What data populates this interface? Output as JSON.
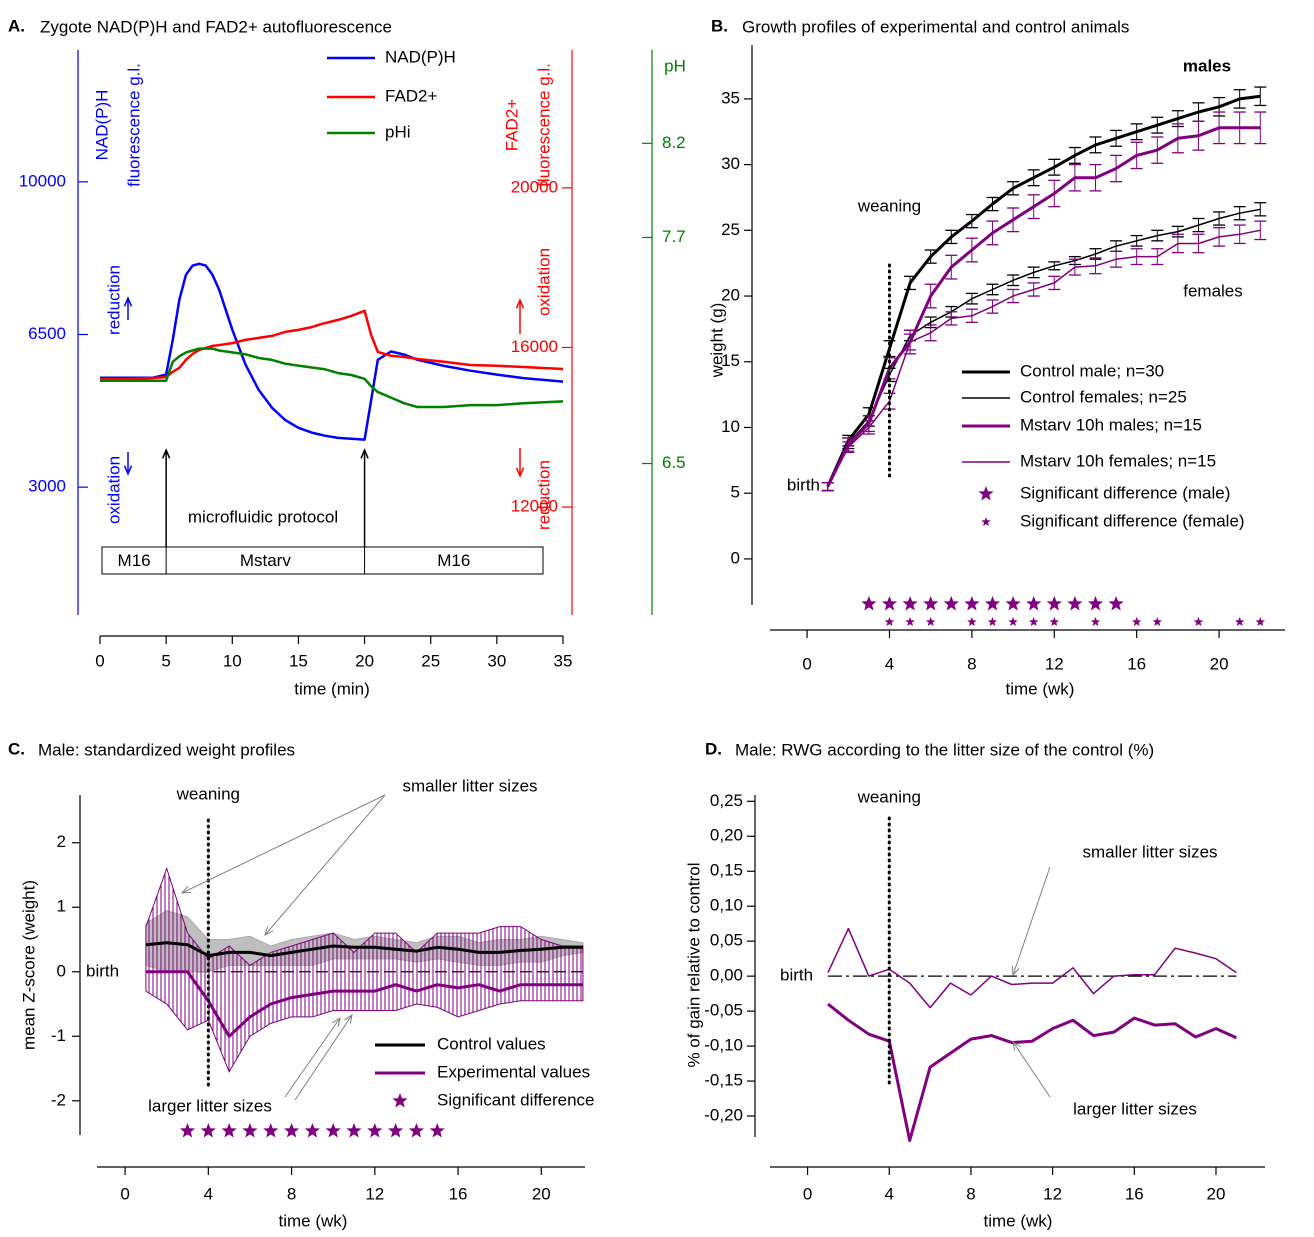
{
  "chart_data": [
    {
      "type": "line",
      "label": "A.",
      "title": "Zygote NAD(P)H and FAD2+ autofluorescence",
      "xlabel": "time (min)",
      "xlim": [
        0,
        35
      ],
      "xticks": [
        0,
        5,
        10,
        15,
        20,
        25,
        30,
        35
      ],
      "ylabel": [
        "NAD(P)H",
        "fluorescence g.l."
      ],
      "ylim": [
        0,
        13000
      ],
      "yticks": [
        3000,
        6500,
        10000
      ],
      "y_color": "#0000ff",
      "y2label": [
        "FAD2+",
        "fluorescence g.l."
      ],
      "y2lim": [
        9220,
        23430
      ],
      "y2ticks": [
        12000,
        16000,
        20000
      ],
      "y2_color": "#ff0000",
      "y3label": [
        "pH"
      ],
      "y3lim": [
        5.68,
        8.69
      ],
      "y3ticks": [
        6.5,
        7.7,
        8.2
      ],
      "y3_color": "#008000",
      "x": [
        0,
        2,
        4,
        5,
        5.5,
        6,
        6.5,
        7,
        7.5,
        8,
        8.5,
        9,
        10,
        11,
        12,
        13,
        14,
        15,
        16,
        17,
        18,
        19,
        20,
        20.5,
        21,
        22,
        23,
        24,
        26,
        28,
        30,
        32,
        35
      ],
      "series": [
        {
          "name": "NAD(P)H",
          "color": "#0000ff",
          "values": [
            5510,
            5510,
            5510,
            5580,
            6380,
            7300,
            7870,
            8080,
            8120,
            8080,
            7870,
            7530,
            6610,
            5810,
            5230,
            4820,
            4540,
            4360,
            4250,
            4180,
            4130,
            4110,
            4090,
            5000,
            5920,
            6110,
            6040,
            5920,
            5780,
            5670,
            5580,
            5500,
            5420
          ]
        },
        {
          "name": "FAD2+",
          "color": "#ff0000",
          "axis": "y2",
          "values": [
            15210,
            15210,
            15235,
            15260,
            15390,
            15490,
            15690,
            15840,
            15940,
            15990,
            16040,
            16060,
            16110,
            16190,
            16240,
            16290,
            16390,
            16440,
            16510,
            16610,
            16690,
            16790,
            16920,
            16310,
            15890,
            15790,
            15760,
            15710,
            15640,
            15560,
            15540,
            15510,
            15460
          ]
        },
        {
          "name": "pHi",
          "color": "#008000",
          "axis": "y3",
          "values": [
            6.94,
            6.94,
            6.94,
            6.94,
            7.04,
            7.07,
            7.09,
            7.1,
            7.11,
            7.11,
            7.11,
            7.1,
            7.09,
            7.08,
            7.06,
            7.05,
            7.03,
            7.02,
            7.01,
            7.0,
            6.98,
            6.97,
            6.95,
            6.91,
            6.88,
            6.85,
            6.82,
            6.8,
            6.8,
            6.81,
            6.81,
            6.82,
            6.83
          ]
        }
      ],
      "annotations": [
        "reduction",
        "oxidation",
        "oxidation",
        "reduction",
        "microfluidic protocol"
      ],
      "protocol": {
        "segments": [
          "M16",
          "Mstarv",
          "M16"
        ],
        "bounds": [
          5,
          20
        ]
      }
    },
    {
      "type": "line",
      "label": "B.",
      "title": "Growth profiles of experimental and control animals",
      "xlabel": "time (wk)",
      "xlim": [
        -1.8,
        23.2
      ],
      "xticks": [
        0,
        4,
        8,
        12,
        16,
        20
      ],
      "ylabel": "weight (g)",
      "ylim": [
        -4.8,
        39.1
      ],
      "yticks": [
        0,
        5,
        10,
        15,
        20,
        25,
        30,
        35
      ],
      "x": [
        1,
        2,
        3,
        4,
        5,
        6,
        7,
        8,
        9,
        10,
        11,
        12,
        13,
        14,
        15,
        16,
        17,
        18,
        19,
        20,
        21,
        22
      ],
      "series": [
        {
          "name": "Control male; n=30",
          "color": "#000000",
          "values": [
            5.5,
            9,
            11,
            16,
            21,
            23,
            24.5,
            25.7,
            27,
            28.2,
            29,
            29.8,
            30.7,
            31.5,
            32,
            32.5,
            33,
            33.5,
            34,
            34.4,
            35,
            35.2
          ],
          "errors": [
            0.3,
            0.4,
            0.5,
            0.6,
            0.5,
            0.5,
            0.5,
            0.5,
            0.5,
            0.5,
            0.6,
            0.6,
            0.6,
            0.6,
            0.6,
            0.6,
            0.6,
            0.6,
            0.7,
            0.7,
            0.7,
            0.7
          ]
        },
        {
          "name": "Control females; n=25",
          "color": "#000000",
          "values": [
            5.5,
            8.8,
            10.5,
            14,
            17,
            18,
            18.8,
            19.8,
            20.5,
            21.2,
            21.8,
            22.3,
            22.7,
            23.2,
            23.8,
            24.2,
            24.6,
            24.9,
            25.4,
            25.9,
            26.3,
            26.6
          ],
          "errors": [
            0.3,
            0.4,
            0.4,
            0.5,
            0.4,
            0.4,
            0.4,
            0.4,
            0.4,
            0.4,
            0.4,
            0.3,
            0.3,
            0.4,
            0.4,
            0.4,
            0.4,
            0.4,
            0.5,
            0.5,
            0.5,
            0.5
          ]
        },
        {
          "name": "Mstarv 10h males; n=15",
          "color": "#800080",
          "values": [
            5.5,
            8.7,
            10.3,
            14.5,
            16.5,
            20,
            22.2,
            23.5,
            24.8,
            25.8,
            26.8,
            27.8,
            29,
            29,
            29.7,
            30.7,
            31.1,
            32,
            32.2,
            32.8,
            32.8,
            32.8
          ],
          "errors": [
            0.3,
            0.5,
            0.6,
            0.8,
            0.9,
            0.9,
            0.9,
            0.9,
            0.9,
            0.9,
            0.9,
            1,
            1,
            1,
            1,
            1,
            1,
            1.1,
            1.1,
            1.2,
            1.2,
            1.2
          ]
        },
        {
          "name": "Mstarv 10h females; n=15",
          "color": "#800080",
          "values": [
            5.5,
            8.5,
            10,
            12,
            16.5,
            17.2,
            18.3,
            18.5,
            19.2,
            20,
            20.5,
            21,
            22.2,
            22.3,
            22.8,
            23,
            23,
            24,
            24,
            24.5,
            24.7,
            25
          ],
          "errors": [
            0.3,
            0.4,
            0.5,
            0.6,
            0.6,
            0.6,
            0.5,
            0.5,
            0.5,
            0.5,
            0.5,
            0.5,
            0.6,
            0.6,
            0.6,
            0.6,
            0.6,
            0.7,
            0.7,
            0.7,
            0.7,
            0.7
          ]
        }
      ],
      "significance": [
        {
          "name": "Significant difference (male)",
          "color": "#800080",
          "x": [
            3,
            4,
            5,
            6,
            7,
            8,
            9,
            10,
            11,
            12,
            13,
            14,
            15
          ]
        },
        {
          "name": "Significant difference (female)",
          "color": "#800080",
          "x": [
            4,
            5,
            6,
            8,
            9,
            10,
            11,
            12,
            14,
            16,
            17,
            19,
            21,
            22
          ]
        }
      ],
      "annotations": [
        "males",
        "females",
        "birth"
      ],
      "weaning": {
        "label": "weaning",
        "x": 4
      }
    },
    {
      "type": "line",
      "label": "C.",
      "title": "Male: standardized weight profiles",
      "xlabel": "time (wk)",
      "xlim": [
        -1.35,
        22.1
      ],
      "xticks": [
        0,
        4,
        8,
        12,
        16,
        20
      ],
      "ylabel": "mean Z-score (weight)",
      "ylim": [
        -2.53,
        2.74
      ],
      "yticks": [
        -2,
        -1,
        0,
        1,
        2
      ],
      "x": [
        1,
        2,
        3,
        4,
        5,
        6,
        7,
        8,
        9,
        10,
        11,
        12,
        13,
        14,
        15,
        16,
        17,
        18,
        19,
        20,
        21,
        22
      ],
      "series": [
        {
          "name": "Control values",
          "color": "#000000",
          "band_color": "#a9a9a9",
          "values": [
            0.42,
            0.45,
            0.42,
            0.25,
            0.3,
            0.3,
            0.25,
            0.3,
            0.35,
            0.4,
            0.38,
            0.38,
            0.35,
            0.32,
            0.38,
            0.35,
            0.3,
            0.3,
            0.33,
            0.35,
            0.38,
            0.38
          ],
          "upper": [
            0.75,
            0.95,
            0.85,
            0.5,
            0.5,
            0.55,
            0.4,
            0.5,
            0.55,
            0.6,
            0.5,
            0.55,
            0.5,
            0.45,
            0.55,
            0.55,
            0.45,
            0.5,
            0.5,
            0.55,
            0.5,
            0.45
          ],
          "lower": [
            0.1,
            0,
            0,
            0,
            0.1,
            0.1,
            0.1,
            0.1,
            0.1,
            0.2,
            0.2,
            0.2,
            0.2,
            0.15,
            0.2,
            0.15,
            0.1,
            0.1,
            0.15,
            0.15,
            0.25,
            0.3
          ]
        },
        {
          "name": "Experimental values",
          "color": "#800080",
          "band_color": "#800080",
          "band_hatch": true,
          "values": [
            0,
            0,
            0,
            -0.45,
            -1.0,
            -0.7,
            -0.5,
            -0.4,
            -0.35,
            -0.3,
            -0.3,
            -0.3,
            -0.2,
            -0.3,
            -0.2,
            -0.25,
            -0.2,
            -0.3,
            -0.2,
            -0.2,
            -0.2,
            -0.2
          ],
          "upper": [
            0.7,
            1.6,
            0.6,
            0.2,
            0.4,
            0.1,
            0.3,
            0.4,
            0.5,
            0.6,
            0.3,
            0.6,
            0.6,
            0.3,
            0.6,
            0.6,
            0.6,
            0.7,
            0.7,
            0.5,
            0.4,
            0.4
          ],
          "lower": [
            -0.3,
            -0.5,
            -0.9,
            -0.75,
            -1.55,
            -1.0,
            -0.8,
            -0.7,
            -0.7,
            -0.6,
            -0.6,
            -0.6,
            -0.6,
            -0.5,
            -0.55,
            -0.7,
            -0.6,
            -0.5,
            -0.45,
            -0.45,
            -0.45,
            -0.45
          ]
        }
      ],
      "significance": [
        {
          "name": "Significant difference",
          "color": "#800080",
          "x": [
            3,
            4,
            5,
            6,
            7,
            8,
            9,
            10,
            11,
            12,
            13,
            14,
            15
          ]
        }
      ],
      "annotations": [
        "birth",
        "smaller litter sizes",
        "larger litter sizes"
      ],
      "weaning": {
        "label": "weaning",
        "x": 4
      },
      "baseline": 0
    },
    {
      "type": "line",
      "label": "D.",
      "title": "Male: RWG according to the litter size of the control (%)",
      "xlabel": "time (wk)",
      "xlim": [
        -1.84,
        22.4
      ],
      "xticks": [
        0,
        4,
        8,
        12,
        16,
        20
      ],
      "ylabel": "% of gain relative to control",
      "ylim": [
        -0.24,
        0.259
      ],
      "yticks": [
        {
          "value": -0.2,
          "label": "-0,20"
        },
        {
          "value": -0.15,
          "label": "-0,15"
        },
        {
          "value": -0.1,
          "label": "-0,10"
        },
        {
          "value": -0.05,
          "label": "-0,05"
        },
        {
          "value": 0,
          "label": "0,00"
        },
        {
          "value": 0.05,
          "label": "0,05"
        },
        {
          "value": 0.1,
          "label": "0,10"
        },
        {
          "value": 0.15,
          "label": "0,15"
        },
        {
          "value": 0.2,
          "label": "0,20"
        },
        {
          "value": 0.25,
          "label": "0,25"
        }
      ],
      "x": [
        1,
        2,
        3,
        4,
        5,
        6,
        7,
        8,
        9,
        10,
        11,
        12,
        13,
        14,
        15,
        16,
        17,
        18,
        19,
        20,
        21
      ],
      "series": [
        {
          "color": "#800080",
          "values": [
            0.005,
            0.068,
            0,
            0.01,
            -0.01,
            -0.045,
            -0.01,
            -0.027,
            0,
            -0.012,
            -0.01,
            -0.01,
            0.012,
            -0.025,
            0,
            0.002,
            0.002,
            0.04,
            0.033,
            0.025,
            0.005
          ]
        },
        {
          "color": "#800080",
          "values": [
            -0.04,
            -0.063,
            -0.083,
            -0.093,
            -0.235,
            -0.13,
            -0.11,
            -0.09,
            -0.085,
            -0.095,
            -0.093,
            -0.075,
            -0.063,
            -0.085,
            -0.08,
            -0.06,
            -0.07,
            -0.068,
            -0.087,
            -0.075,
            -0.088
          ]
        }
      ],
      "annotations": [
        "birth",
        "smaller  litter sizes",
        "larger litter sizes"
      ],
      "weaning": {
        "label": "weaning",
        "x": 4
      },
      "baseline": 0
    }
  ]
}
